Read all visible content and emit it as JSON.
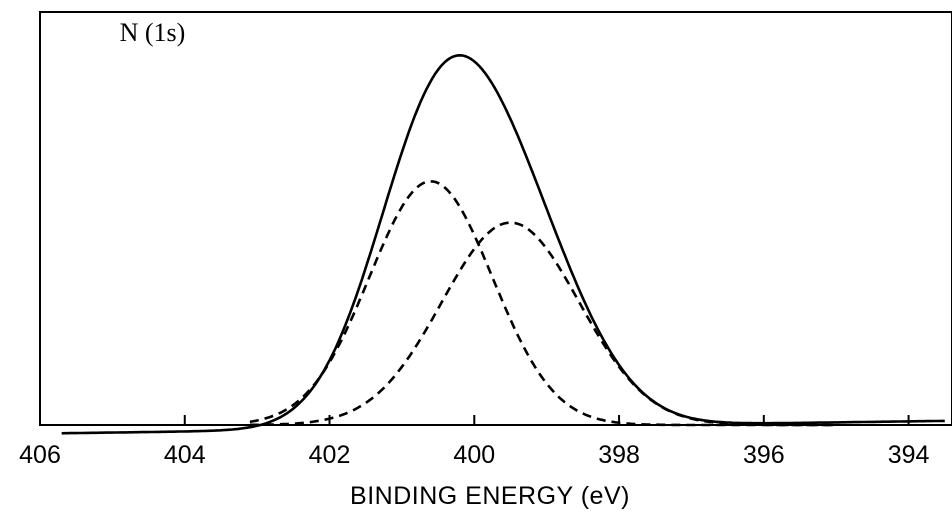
{
  "chart_data": {
    "type": "line",
    "title": "",
    "xlabel": "BINDING ENERGY (eV)",
    "ylabel": "",
    "x_reversed": true,
    "xlim": [
      406,
      393.4
    ],
    "ylim": [
      0,
      1.0
    ],
    "x_ticks": [
      406,
      404,
      402,
      400,
      398,
      396,
      394
    ],
    "y_ticks": [],
    "grid": false,
    "legend": "none",
    "annotations": [
      {
        "text": "N (1s)",
        "x": 404.9,
        "y": 0.93
      }
    ],
    "series": [
      {
        "style": "solid",
        "color": "#000000",
        "background": {
          "x_start": 405.7,
          "x_end": 393.5,
          "y_start": -0.02,
          "y_end": 0.01
        },
        "components": [
          {
            "center": 400.6,
            "height": 0.59,
            "sigma": 0.85
          },
          {
            "center": 399.5,
            "height": 0.49,
            "sigma": 0.95
          }
        ]
      },
      {
        "style": "dashed",
        "color": "#000000",
        "x_range": [
          403.1,
          395.0
        ],
        "peak": {
          "x": 400.6,
          "y": 0.59
        },
        "gaussian": {
          "center": 400.6,
          "height": 0.59,
          "sigma": 0.85
        }
      },
      {
        "style": "dashed",
        "color": "#000000",
        "x_range": [
          403.1,
          395.0
        ],
        "peak": {
          "x": 399.5,
          "y": 0.49
        },
        "gaussian": {
          "center": 399.5,
          "height": 0.49,
          "sigma": 0.95
        }
      }
    ]
  }
}
